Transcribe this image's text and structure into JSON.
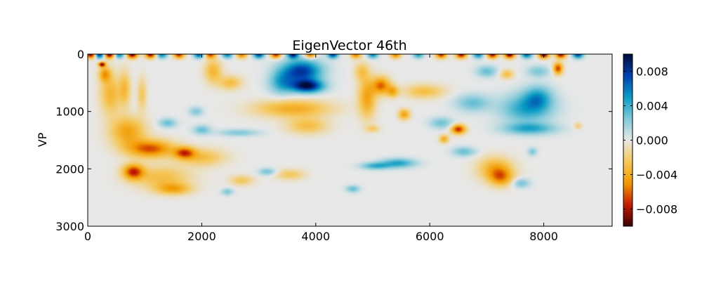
{
  "chart_data": {
    "type": "heatmap",
    "title": "EigenVector 46th",
    "xlabel": "",
    "ylabel": "VP",
    "xlim": [
      0,
      9200
    ],
    "ylim": [
      3000,
      0
    ],
    "y_inverted": true,
    "x_ticks": [
      {
        "value": 0,
        "label": "0"
      },
      {
        "value": 2000,
        "label": "2000"
      },
      {
        "value": 4000,
        "label": "4000"
      },
      {
        "value": 6000,
        "label": "6000"
      },
      {
        "value": 8000,
        "label": "8000"
      }
    ],
    "y_ticks": [
      {
        "value": 0,
        "label": "0"
      },
      {
        "value": 1000,
        "label": "1000"
      },
      {
        "value": 2000,
        "label": "2000"
      },
      {
        "value": 3000,
        "label": "3000"
      }
    ],
    "colorbar": {
      "range": [
        -0.01,
        0.01
      ],
      "colors": [
        "#3a0000",
        "#c41a00",
        "#f29a00",
        "#f5c75a",
        "#e8e8e8",
        "#7fc8d8",
        "#0a9cc4",
        "#0040b0",
        "#000a3a"
      ],
      "ticks": [
        {
          "value": 0.008,
          "label": "0.008"
        },
        {
          "value": 0.004,
          "label": "0.004"
        },
        {
          "value": 0.0,
          "label": "0.000"
        },
        {
          "value": -0.004,
          "label": "−0.004"
        },
        {
          "value": -0.008,
          "label": "−0.008"
        }
      ]
    },
    "background_value": 0.0,
    "features": [
      {
        "x": 250,
        "y": 180,
        "rx": 60,
        "ry": 40,
        "v": -0.009
      },
      {
        "x": 300,
        "y": 350,
        "rx": 100,
        "ry": 130,
        "v": -0.0045
      },
      {
        "x": 400,
        "y": 700,
        "rx": 180,
        "ry": 350,
        "v": -0.0035
      },
      {
        "x": 700,
        "y": 1350,
        "rx": 300,
        "ry": 250,
        "v": -0.0045
      },
      {
        "x": 1100,
        "y": 1650,
        "rx": 400,
        "ry": 150,
        "v": -0.0065
      },
      {
        "x": 1700,
        "y": 1720,
        "rx": 180,
        "ry": 100,
        "v": -0.006
      },
      {
        "x": 2000,
        "y": 1800,
        "rx": 400,
        "ry": 150,
        "v": -0.003
      },
      {
        "x": 800,
        "y": 2050,
        "rx": 180,
        "ry": 130,
        "v": -0.007
      },
      {
        "x": 1300,
        "y": 2150,
        "rx": 500,
        "ry": 200,
        "v": -0.003
      },
      {
        "x": 1500,
        "y": 2350,
        "rx": 300,
        "ry": 100,
        "v": -0.004
      },
      {
        "x": 650,
        "y": 600,
        "rx": 100,
        "ry": 300,
        "v": -0.003
      },
      {
        "x": 950,
        "y": 700,
        "rx": 80,
        "ry": 280,
        "v": -0.0025
      },
      {
        "x": 2200,
        "y": 300,
        "rx": 150,
        "ry": 200,
        "v": -0.0035
      },
      {
        "x": 2500,
        "y": 500,
        "rx": 200,
        "ry": 120,
        "v": -0.003
      },
      {
        "x": 1400,
        "y": 1200,
        "rx": 150,
        "ry": 80,
        "v": 0.003
      },
      {
        "x": 1900,
        "y": 1000,
        "rx": 120,
        "ry": 80,
        "v": 0.0025
      },
      {
        "x": 2000,
        "y": 1320,
        "rx": 150,
        "ry": 80,
        "v": 0.003
      },
      {
        "x": 2650,
        "y": 1370,
        "rx": 350,
        "ry": 60,
        "v": 0.0025
      },
      {
        "x": 3750,
        "y": 300,
        "rx": 350,
        "ry": 200,
        "v": 0.008
      },
      {
        "x": 3850,
        "y": 560,
        "rx": 280,
        "ry": 110,
        "v": 0.009
      },
      {
        "x": 3400,
        "y": 500,
        "rx": 220,
        "ry": 200,
        "v": 0.004
      },
      {
        "x": 3600,
        "y": 950,
        "rx": 650,
        "ry": 150,
        "v": -0.004
      },
      {
        "x": 3850,
        "y": 1250,
        "rx": 350,
        "ry": 140,
        "v": -0.003
      },
      {
        "x": 3150,
        "y": 2050,
        "rx": 150,
        "ry": 60,
        "v": 0.0028
      },
      {
        "x": 3550,
        "y": 2100,
        "rx": 250,
        "ry": 90,
        "v": -0.0025
      },
      {
        "x": 2700,
        "y": 2200,
        "rx": 200,
        "ry": 90,
        "v": -0.0025
      },
      {
        "x": 2450,
        "y": 2400,
        "rx": 100,
        "ry": 60,
        "v": 0.0025
      },
      {
        "x": 4800,
        "y": 300,
        "rx": 120,
        "ry": 150,
        "v": -0.0025
      },
      {
        "x": 4900,
        "y": 750,
        "rx": 150,
        "ry": 350,
        "v": -0.0045
      },
      {
        "x": 5150,
        "y": 550,
        "rx": 150,
        "ry": 150,
        "v": -0.006
      },
      {
        "x": 5350,
        "y": 650,
        "rx": 100,
        "ry": 100,
        "v": -0.004
      },
      {
        "x": 5050,
        "y": 1950,
        "rx": 250,
        "ry": 60,
        "v": 0.004
      },
      {
        "x": 5450,
        "y": 1900,
        "rx": 300,
        "ry": 80,
        "v": 0.0045
      },
      {
        "x": 4650,
        "y": 2350,
        "rx": 120,
        "ry": 60,
        "v": 0.003
      },
      {
        "x": 5900,
        "y": 650,
        "rx": 350,
        "ry": 120,
        "v": -0.003
      },
      {
        "x": 6200,
        "y": 1200,
        "rx": 200,
        "ry": 100,
        "v": 0.0028
      },
      {
        "x": 6500,
        "y": 1310,
        "rx": 120,
        "ry": 80,
        "v": -0.0075
      },
      {
        "x": 6250,
        "y": 1480,
        "rx": 80,
        "ry": 70,
        "v": -0.004
      },
      {
        "x": 6600,
        "y": 1700,
        "rx": 200,
        "ry": 80,
        "v": 0.003
      },
      {
        "x": 7000,
        "y": 300,
        "rx": 180,
        "ry": 100,
        "v": 0.003
      },
      {
        "x": 7350,
        "y": 350,
        "rx": 120,
        "ry": 80,
        "v": -0.003
      },
      {
        "x": 6750,
        "y": 850,
        "rx": 300,
        "ry": 150,
        "v": 0.003
      },
      {
        "x": 7700,
        "y": 950,
        "rx": 450,
        "ry": 250,
        "v": 0.0045
      },
      {
        "x": 7900,
        "y": 750,
        "rx": 250,
        "ry": 200,
        "v": 0.004
      },
      {
        "x": 7750,
        "y": 1300,
        "rx": 450,
        "ry": 100,
        "v": 0.0042
      },
      {
        "x": 8250,
        "y": 250,
        "rx": 80,
        "ry": 100,
        "v": -0.007
      },
      {
        "x": 7900,
        "y": 300,
        "rx": 200,
        "ry": 100,
        "v": 0.0025
      },
      {
        "x": 7150,
        "y": 2000,
        "rx": 300,
        "ry": 200,
        "v": -0.004
      },
      {
        "x": 7250,
        "y": 2150,
        "rx": 200,
        "ry": 150,
        "v": -0.0045
      },
      {
        "x": 7600,
        "y": 2250,
        "rx": 150,
        "ry": 80,
        "v": 0.0028
      },
      {
        "x": 7800,
        "y": 1700,
        "rx": 80,
        "ry": 70,
        "v": 0.0025
      },
      {
        "x": 8600,
        "y": 1250,
        "rx": 70,
        "ry": 60,
        "v": -0.002
      },
      {
        "x": 5000,
        "y": 1300,
        "rx": 120,
        "ry": 60,
        "v": -0.0022
      },
      {
        "x": 5550,
        "y": 1050,
        "rx": 100,
        "ry": 90,
        "v": -0.0045
      }
    ],
    "top_band": [
      {
        "x": 60,
        "v": -0.01
      },
      {
        "x": 200,
        "v": 0.009
      },
      {
        "x": 380,
        "v": -0.01
      },
      {
        "x": 550,
        "v": 0.006
      },
      {
        "x": 780,
        "v": -0.01
      },
      {
        "x": 1100,
        "v": -0.009
      },
      {
        "x": 1300,
        "v": 0.006
      },
      {
        "x": 1600,
        "v": -0.008
      },
      {
        "x": 1950,
        "v": 0.007
      },
      {
        "x": 2150,
        "v": -0.007
      },
      {
        "x": 2450,
        "v": 0.006
      },
      {
        "x": 2700,
        "v": -0.006
      },
      {
        "x": 3000,
        "v": 0.008
      },
      {
        "x": 3300,
        "v": -0.008
      },
      {
        "x": 3600,
        "v": 0.009
      },
      {
        "x": 3900,
        "v": -0.007
      },
      {
        "x": 4300,
        "v": 0.008
      },
      {
        "x": 4700,
        "v": -0.006
      },
      {
        "x": 5000,
        "v": 0.006
      },
      {
        "x": 5400,
        "v": -0.006
      },
      {
        "x": 5800,
        "v": 0.005
      },
      {
        "x": 6200,
        "v": -0.008
      },
      {
        "x": 6550,
        "v": -0.009
      },
      {
        "x": 6850,
        "v": 0.006
      },
      {
        "x": 7100,
        "v": -0.009
      },
      {
        "x": 7400,
        "v": -0.01
      },
      {
        "x": 7700,
        "v": 0.007
      },
      {
        "x": 8000,
        "v": -0.01
      },
      {
        "x": 8300,
        "v": -0.009
      },
      {
        "x": 8600,
        "v": 0.008
      }
    ]
  }
}
